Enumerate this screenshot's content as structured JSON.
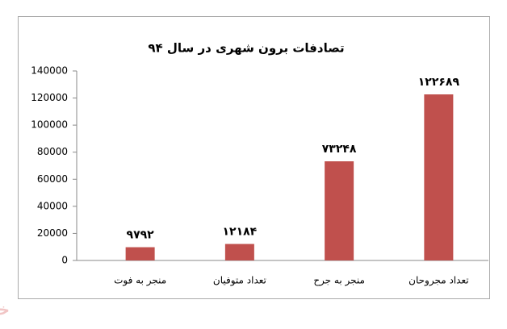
{
  "chart_data": {
    "type": "bar",
    "title": "تصادفات برون شهری در سال ۹۴",
    "categories": [
      "منجر به فوت",
      "تعداد متوفیان",
      "منجر به جرح",
      "تعداد مجروحان"
    ],
    "values": [
      9792,
      12184,
      73248,
      122689
    ],
    "value_labels": [
      "۹۷۹۲",
      "۱۲۱۸۴",
      "۷۳۲۴۸",
      "۱۲۲۶۸۹"
    ],
    "color": "#c0504d",
    "ylim": [
      0,
      140000
    ],
    "yticks": [
      0,
      20000,
      40000,
      60000,
      80000,
      100000,
      120000,
      140000
    ],
    "grid": false
  },
  "watermark": "خبرآنلاین"
}
